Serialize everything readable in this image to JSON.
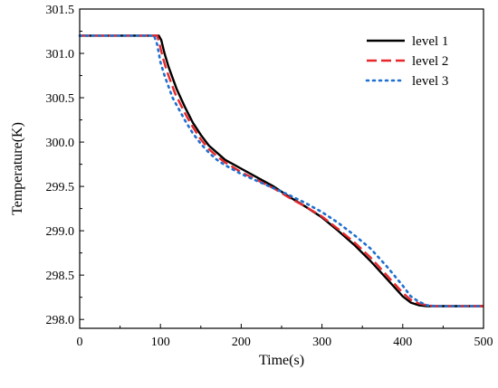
{
  "chart_data": {
    "type": "line",
    "xlabel": "Time(s)",
    "ylabel": "Temperature(K)",
    "xlim": [
      0,
      500
    ],
    "ylim": [
      297.9,
      301.5
    ],
    "xticks": [
      0,
      100,
      200,
      300,
      400,
      500
    ],
    "xtick_labels": [
      "0",
      "100",
      "200",
      "300",
      "400",
      "500"
    ],
    "yticks": [
      298.0,
      298.5,
      299.0,
      299.5,
      300.0,
      300.5,
      301.0,
      301.5
    ],
    "ytick_labels": [
      "298.0",
      "298.5",
      "299.0",
      "299.5",
      "300.0",
      "300.5",
      "301.0",
      "301.5"
    ],
    "grid": false,
    "legend_position": "top-right",
    "series": [
      {
        "name": "level 1",
        "color": "#000000",
        "style": "solid",
        "x": [
          0,
          98,
          101,
          105,
          110,
          120,
          130,
          140,
          150,
          160,
          170,
          180,
          200,
          220,
          240,
          260,
          280,
          300,
          320,
          340,
          360,
          380,
          400,
          410,
          420,
          430,
          440,
          500
        ],
        "y": [
          301.2,
          301.2,
          301.15,
          301.0,
          300.85,
          300.6,
          300.4,
          300.22,
          300.08,
          299.96,
          299.88,
          299.8,
          299.7,
          299.6,
          299.5,
          299.38,
          299.27,
          299.15,
          299.0,
          298.84,
          298.66,
          298.46,
          298.26,
          298.19,
          298.16,
          298.15,
          298.15,
          298.15
        ]
      },
      {
        "name": "level 2",
        "color": "#e8262a",
        "style": "dashed",
        "x": [
          0,
          96,
          99,
          103,
          108,
          118,
          130,
          140,
          150,
          160,
          170,
          180,
          200,
          220,
          240,
          260,
          280,
          300,
          320,
          340,
          360,
          380,
          400,
          410,
          420,
          430,
          440,
          500
        ],
        "y": [
          301.2,
          301.2,
          301.1,
          300.95,
          300.8,
          300.55,
          300.33,
          300.17,
          300.03,
          299.92,
          299.84,
          299.77,
          299.66,
          299.57,
          299.48,
          299.37,
          299.27,
          299.16,
          299.02,
          298.87,
          298.7,
          298.5,
          298.3,
          298.22,
          298.18,
          298.16,
          298.15,
          298.15
        ]
      },
      {
        "name": "level 3",
        "color": "#1e6fd0",
        "style": "dotted",
        "x": [
          0,
          92,
          96,
          100,
          105,
          115,
          130,
          140,
          150,
          160,
          170,
          180,
          200,
          220,
          240,
          260,
          280,
          300,
          320,
          340,
          360,
          380,
          400,
          410,
          420,
          430,
          440,
          500
        ],
        "y": [
          301.2,
          301.2,
          301.1,
          300.9,
          300.75,
          300.5,
          300.25,
          300.1,
          299.98,
          299.88,
          299.8,
          299.74,
          299.64,
          299.56,
          299.48,
          299.4,
          299.31,
          299.21,
          299.09,
          298.95,
          298.8,
          298.6,
          298.38,
          298.26,
          298.2,
          298.16,
          298.15,
          298.15
        ]
      }
    ]
  }
}
